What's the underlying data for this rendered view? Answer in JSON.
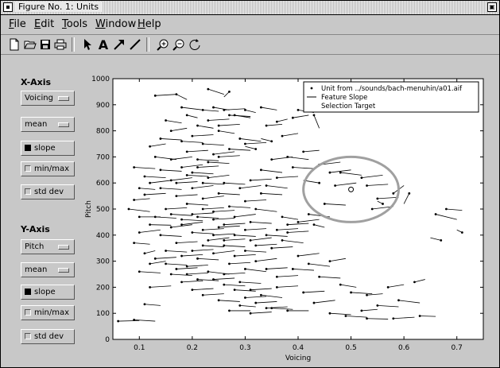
{
  "window": {
    "title": "Figure No. 1: Units"
  },
  "menu": [
    {
      "label": "File",
      "u": "F"
    },
    {
      "label": "Edit",
      "u": "E"
    },
    {
      "label": "Tools",
      "u": "T"
    },
    {
      "label": "Window",
      "u": "W"
    },
    {
      "label": "Help",
      "u": "H"
    }
  ],
  "toolbar": [
    "new-file-icon",
    "open-folder-icon",
    "save-icon",
    "print-icon",
    "pointer-icon",
    "text-icon",
    "arrow-icon",
    "line-icon",
    "zoom-in-icon",
    "zoom-out-icon",
    "rotate-icon"
  ],
  "xaxis_panel": {
    "heading": "X-Axis",
    "feature": "Voicing",
    "stat": "mean",
    "toggles": [
      {
        "label": "slope",
        "on": true
      },
      {
        "label": "min/max",
        "on": false
      },
      {
        "label": "std dev",
        "on": false
      }
    ]
  },
  "yaxis_panel": {
    "heading": "Y-Axis",
    "feature": "Pitch",
    "stat": "mean",
    "toggles": [
      {
        "label": "slope",
        "on": true
      },
      {
        "label": "min/max",
        "on": false
      },
      {
        "label": "std dev",
        "on": false
      }
    ]
  },
  "chart_data": {
    "type": "scatter",
    "xlabel": "Voicing",
    "ylabel": "Pitch",
    "xlim": [
      0.05,
      0.75
    ],
    "ylim": [
      0,
      1000
    ],
    "xticks": [
      "0.1",
      "0.2",
      "0.3",
      "0.4",
      "0.5",
      "0.6",
      "0.7"
    ],
    "yticks": [
      "0",
      "100",
      "200",
      "300",
      "400",
      "500",
      "600",
      "700",
      "800",
      "900",
      "1000"
    ],
    "legend": {
      "placement": "top-right",
      "entries": [
        "Unit from ../sounds/bach-menuhin/a01.aif",
        "Feature Slope",
        "Selection Target"
      ]
    },
    "selection": {
      "x": 0.5,
      "y": 575,
      "rx": 0.09,
      "ry": 125
    },
    "colors": {
      "points": "#000000",
      "ellipse": "#a0a0a0"
    },
    "points": [
      [
        0.06,
        70,
        0.1,
        72
      ],
      [
        0.09,
        75,
        0.13,
        70
      ],
      [
        0.11,
        135,
        0.14,
        130
      ],
      [
        0.12,
        200,
        0.16,
        205
      ],
      [
        0.1,
        260,
        0.14,
        255
      ],
      [
        0.12,
        290,
        0.15,
        300
      ],
      [
        0.11,
        330,
        0.13,
        340
      ],
      [
        0.09,
        370,
        0.12,
        365
      ],
      [
        0.1,
        410,
        0.14,
        420
      ],
      [
        0.12,
        440,
        0.16,
        438
      ],
      [
        0.1,
        470,
        0.14,
        470
      ],
      [
        0.08,
        500,
        0.12,
        490
      ],
      [
        0.09,
        535,
        0.12,
        540
      ],
      [
        0.11,
        555,
        0.15,
        560
      ],
      [
        0.1,
        580,
        0.13,
        575
      ],
      [
        0.12,
        600,
        0.16,
        610
      ],
      [
        0.11,
        625,
        0.15,
        620
      ],
      [
        0.09,
        660,
        0.13,
        655
      ],
      [
        0.13,
        700,
        0.17,
        690
      ],
      [
        0.12,
        740,
        0.15,
        750
      ],
      [
        0.14,
        770,
        0.18,
        765
      ],
      [
        0.16,
        800,
        0.19,
        810
      ],
      [
        0.15,
        840,
        0.18,
        830
      ],
      [
        0.13,
        935,
        0.17,
        940
      ],
      [
        0.17,
        940,
        0.19,
        920
      ],
      [
        0.18,
        890,
        0.22,
        880
      ],
      [
        0.19,
        860,
        0.21,
        850
      ],
      [
        0.22,
        880,
        0.25,
        875
      ],
      [
        0.24,
        890,
        0.27,
        880
      ],
      [
        0.27,
        950,
        0.26,
        930
      ],
      [
        0.23,
        960,
        0.26,
        940
      ],
      [
        0.26,
        880,
        0.3,
        885
      ],
      [
        0.28,
        860,
        0.31,
        850
      ],
      [
        0.3,
        880,
        0.32,
        870
      ],
      [
        0.21,
        820,
        0.24,
        810
      ],
      [
        0.25,
        800,
        0.28,
        790
      ],
      [
        0.29,
        770,
        0.33,
        760
      ],
      [
        0.32,
        730,
        0.3,
        740
      ],
      [
        0.35,
        760,
        0.33,
        770
      ],
      [
        0.37,
        780,
        0.4,
        790
      ],
      [
        0.36,
        835,
        0.38,
        845
      ],
      [
        0.39,
        850,
        0.42,
        860
      ],
      [
        0.34,
        820,
        0.37,
        825
      ],
      [
        0.33,
        890,
        0.36,
        880
      ],
      [
        0.4,
        880,
        0.43,
        870
      ],
      [
        0.43,
        860,
        0.44,
        810
      ],
      [
        0.38,
        700,
        0.42,
        690
      ],
      [
        0.41,
        720,
        0.44,
        725
      ],
      [
        0.39,
        660,
        0.43,
        655
      ],
      [
        0.44,
        670,
        0.48,
        680
      ],
      [
        0.46,
        640,
        0.5,
        650
      ],
      [
        0.48,
        640,
        0.52,
        630
      ],
      [
        0.52,
        620,
        0.56,
        630
      ],
      [
        0.47,
        590,
        0.51,
        600
      ],
      [
        0.44,
        600,
        0.41,
        610
      ],
      [
        0.53,
        590,
        0.57,
        595
      ],
      [
        0.55,
        540,
        0.59,
        545
      ],
      [
        0.58,
        560,
        0.6,
        590
      ],
      [
        0.61,
        560,
        0.6,
        520
      ],
      [
        0.54,
        500,
        0.58,
        510
      ],
      [
        0.45,
        520,
        0.49,
        515
      ],
      [
        0.42,
        480,
        0.46,
        470
      ],
      [
        0.4,
        450,
        0.44,
        460
      ],
      [
        0.38,
        410,
        0.42,
        415
      ],
      [
        0.43,
        440,
        0.45,
        430
      ],
      [
        0.37,
        380,
        0.41,
        370
      ],
      [
        0.35,
        350,
        0.39,
        355
      ],
      [
        0.4,
        320,
        0.44,
        330
      ],
      [
        0.42,
        290,
        0.46,
        280
      ],
      [
        0.46,
        300,
        0.49,
        310
      ],
      [
        0.39,
        270,
        0.43,
        265
      ],
      [
        0.44,
        240,
        0.48,
        235
      ],
      [
        0.48,
        210,
        0.51,
        200
      ],
      [
        0.5,
        180,
        0.54,
        175
      ],
      [
        0.53,
        170,
        0.56,
        175
      ],
      [
        0.57,
        200,
        0.6,
        210
      ],
      [
        0.62,
        220,
        0.64,
        230
      ],
      [
        0.59,
        150,
        0.63,
        140
      ],
      [
        0.55,
        130,
        0.59,
        125
      ],
      [
        0.52,
        110,
        0.55,
        115
      ],
      [
        0.49,
        90,
        0.53,
        85
      ],
      [
        0.53,
        80,
        0.57,
        78
      ],
      [
        0.58,
        80,
        0.62,
        85
      ],
      [
        0.63,
        90,
        0.66,
        88
      ],
      [
        0.46,
        100,
        0.5,
        95
      ],
      [
        0.43,
        140,
        0.47,
        150
      ],
      [
        0.41,
        180,
        0.45,
        185
      ],
      [
        0.36,
        200,
        0.4,
        205
      ],
      [
        0.33,
        170,
        0.37,
        160
      ],
      [
        0.35,
        120,
        0.39,
        115
      ],
      [
        0.38,
        110,
        0.42,
        110
      ],
      [
        0.31,
        100,
        0.35,
        105
      ],
      [
        0.29,
        130,
        0.32,
        125
      ],
      [
        0.27,
        110,
        0.31,
        110
      ],
      [
        0.25,
        150,
        0.29,
        145
      ],
      [
        0.22,
        170,
        0.26,
        175
      ],
      [
        0.2,
        190,
        0.24,
        195
      ],
      [
        0.18,
        220,
        0.22,
        225
      ],
      [
        0.16,
        250,
        0.2,
        245
      ],
      [
        0.19,
        280,
        0.23,
        285
      ],
      [
        0.21,
        310,
        0.25,
        305
      ],
      [
        0.24,
        330,
        0.28,
        340
      ],
      [
        0.26,
        360,
        0.3,
        355
      ],
      [
        0.23,
        380,
        0.27,
        390
      ],
      [
        0.2,
        410,
        0.24,
        405
      ],
      [
        0.18,
        440,
        0.22,
        450
      ],
      [
        0.21,
        470,
        0.25,
        465
      ],
      [
        0.24,
        490,
        0.28,
        495
      ],
      [
        0.27,
        510,
        0.31,
        505
      ],
      [
        0.3,
        530,
        0.34,
        535
      ],
      [
        0.33,
        560,
        0.37,
        555
      ],
      [
        0.29,
        580,
        0.33,
        590
      ],
      [
        0.26,
        600,
        0.3,
        595
      ],
      [
        0.23,
        620,
        0.27,
        630
      ],
      [
        0.2,
        640,
        0.24,
        635
      ],
      [
        0.18,
        660,
        0.22,
        670
      ],
      [
        0.21,
        690,
        0.25,
        685
      ],
      [
        0.24,
        710,
        0.28,
        720
      ],
      [
        0.27,
        730,
        0.31,
        725
      ],
      [
        0.3,
        750,
        0.34,
        755
      ],
      [
        0.22,
        750,
        0.26,
        745
      ],
      [
        0.19,
        720,
        0.23,
        725
      ],
      [
        0.16,
        690,
        0.2,
        700
      ],
      [
        0.14,
        650,
        0.18,
        645
      ],
      [
        0.16,
        610,
        0.2,
        620
      ],
      [
        0.14,
        580,
        0.18,
        575
      ],
      [
        0.17,
        550,
        0.21,
        555
      ],
      [
        0.19,
        520,
        0.23,
        515
      ],
      [
        0.15,
        500,
        0.19,
        505
      ],
      [
        0.13,
        470,
        0.17,
        465
      ],
      [
        0.16,
        430,
        0.2,
        440
      ],
      [
        0.14,
        400,
        0.18,
        395
      ],
      [
        0.17,
        370,
        0.21,
        375
      ],
      [
        0.15,
        340,
        0.19,
        335
      ],
      [
        0.13,
        310,
        0.17,
        315
      ],
      [
        0.22,
        540,
        0.26,
        550
      ],
      [
        0.25,
        560,
        0.29,
        555
      ],
      [
        0.28,
        470,
        0.32,
        480
      ],
      [
        0.31,
        450,
        0.35,
        445
      ],
      [
        0.25,
        430,
        0.29,
        435
      ],
      [
        0.28,
        400,
        0.32,
        395
      ],
      [
        0.31,
        380,
        0.35,
        390
      ],
      [
        0.27,
        290,
        0.31,
        295
      ],
      [
        0.3,
        270,
        0.34,
        260
      ],
      [
        0.32,
        300,
        0.36,
        310
      ],
      [
        0.34,
        270,
        0.38,
        275
      ],
      [
        0.36,
        240,
        0.4,
        245
      ],
      [
        0.29,
        220,
        0.33,
        215
      ],
      [
        0.31,
        190,
        0.35,
        195
      ],
      [
        0.26,
        250,
        0.3,
        255
      ],
      [
        0.23,
        260,
        0.27,
        250
      ],
      [
        0.68,
        500,
        0.71,
        495
      ],
      [
        0.66,
        480,
        0.7,
        460
      ],
      [
        0.71,
        410,
        0.7,
        420
      ],
      [
        0.67,
        380,
        0.65,
        390
      ],
      [
        0.56,
        520,
        0.55,
        530
      ],
      [
        0.33,
        650,
        0.37,
        640
      ],
      [
        0.35,
        690,
        0.39,
        700
      ],
      [
        0.31,
        610,
        0.35,
        615
      ],
      [
        0.34,
        590,
        0.38,
        580
      ],
      [
        0.36,
        620,
        0.4,
        625
      ],
      [
        0.32,
        500,
        0.36,
        490
      ],
      [
        0.37,
        470,
        0.4,
        460
      ],
      [
        0.3,
        420,
        0.34,
        425
      ],
      [
        0.27,
        860,
        0.31,
        855
      ],
      [
        0.25,
        820,
        0.29,
        825
      ],
      [
        0.23,
        840,
        0.27,
        845
      ],
      [
        0.2,
        780,
        0.24,
        785
      ],
      [
        0.18,
        760,
        0.22,
        755
      ],
      [
        0.17,
        600,
        0.21,
        605
      ],
      [
        0.2,
        580,
        0.24,
        590
      ],
      [
        0.22,
        600,
        0.26,
        595
      ],
      [
        0.19,
        630,
        0.23,
        625
      ],
      [
        0.21,
        660,
        0.25,
        665
      ],
      [
        0.23,
        680,
        0.27,
        675
      ],
      [
        0.25,
        700,
        0.29,
        705
      ],
      [
        0.22,
        500,
        0.26,
        505
      ],
      [
        0.2,
        480,
        0.24,
        485
      ],
      [
        0.18,
        460,
        0.22,
        455
      ],
      [
        0.16,
        480,
        0.2,
        475
      ],
      [
        0.24,
        460,
        0.28,
        465
      ],
      [
        0.26,
        440,
        0.3,
        445
      ],
      [
        0.22,
        420,
        0.26,
        425
      ],
      [
        0.24,
        400,
        0.28,
        405
      ],
      [
        0.26,
        380,
        0.3,
        385
      ],
      [
        0.22,
        360,
        0.26,
        355
      ],
      [
        0.2,
        340,
        0.24,
        345
      ],
      [
        0.18,
        320,
        0.22,
        325
      ],
      [
        0.28,
        320,
        0.32,
        325
      ],
      [
        0.3,
        340,
        0.34,
        335
      ],
      [
        0.32,
        360,
        0.36,
        365
      ],
      [
        0.34,
        400,
        0.38,
        395
      ],
      [
        0.36,
        420,
        0.4,
        425
      ],
      [
        0.38,
        440,
        0.42,
        445
      ],
      [
        0.24,
        230,
        0.28,
        235
      ],
      [
        0.26,
        210,
        0.3,
        205
      ],
      [
        0.28,
        190,
        0.32,
        185
      ],
      [
        0.3,
        160,
        0.34,
        165
      ],
      [
        0.32,
        140,
        0.36,
        145
      ],
      [
        0.34,
        120,
        0.38,
        125
      ],
      [
        0.21,
        230,
        0.25,
        225
      ],
      [
        0.19,
        250,
        0.23,
        255
      ],
      [
        0.17,
        270,
        0.21,
        275
      ],
      [
        0.15,
        290,
        0.19,
        285
      ]
    ]
  }
}
